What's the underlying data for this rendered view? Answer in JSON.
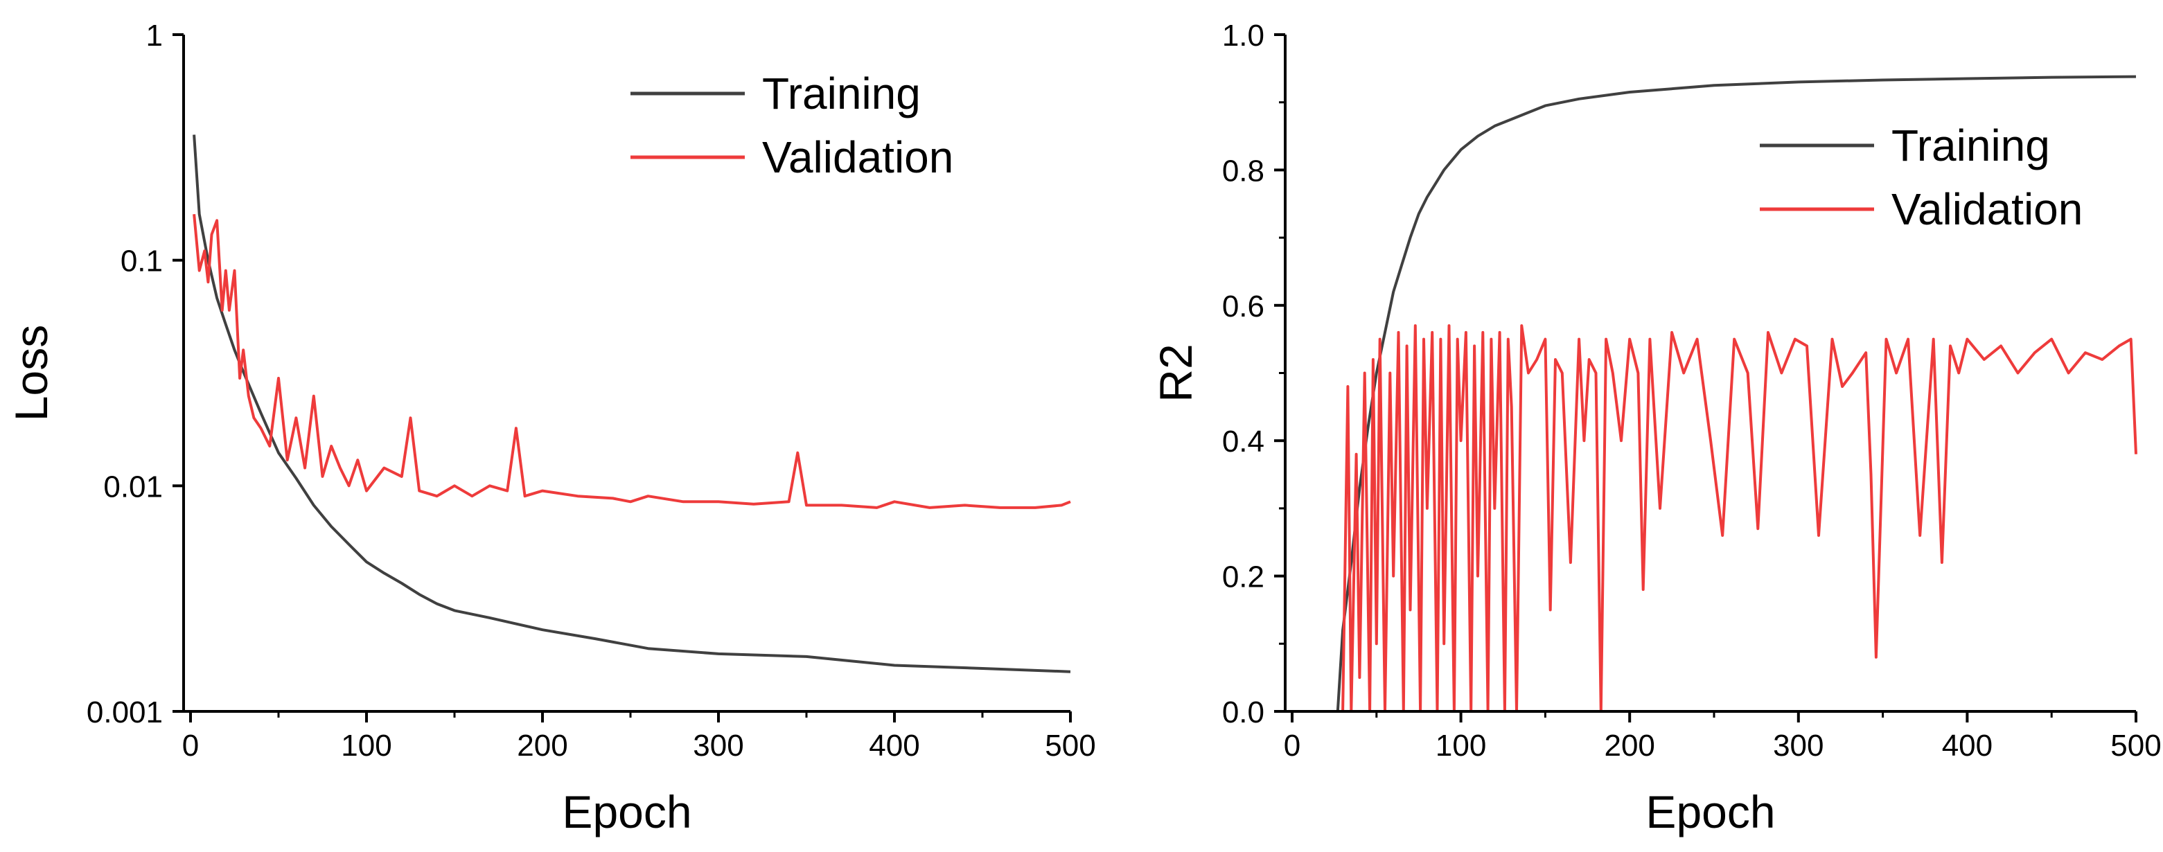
{
  "chart_data": [
    {
      "id": "loss",
      "type": "line",
      "title": "",
      "xlabel": "Epoch",
      "ylabel": "Loss",
      "yscale": "log",
      "xlim": [
        0,
        500
      ],
      "ylim": [
        0.001,
        1
      ],
      "xticks": [
        0,
        100,
        200,
        300,
        400,
        500
      ],
      "xtick_labels": [
        "0",
        "100",
        "200",
        "300",
        "400",
        "500"
      ],
      "yticks": [
        0.001,
        0.01,
        0.1,
        1
      ],
      "ytick_labels": [
        "0.001",
        "0.01",
        "0.1",
        "1"
      ],
      "legend_position": "top-right",
      "series": [
        {
          "name": "Training",
          "color": "#404040",
          "x": [
            2,
            5,
            10,
            15,
            20,
            25,
            30,
            40,
            50,
            60,
            70,
            80,
            90,
            100,
            110,
            120,
            130,
            140,
            150,
            170,
            200,
            230,
            260,
            300,
            350,
            400,
            450,
            500
          ],
          "y": [
            0.36,
            0.16,
            0.1,
            0.068,
            0.052,
            0.04,
            0.032,
            0.021,
            0.014,
            0.0108,
            0.0082,
            0.0066,
            0.0055,
            0.0046,
            0.0041,
            0.0037,
            0.0033,
            0.003,
            0.0028,
            0.0026,
            0.0023,
            0.0021,
            0.0019,
            0.0018,
            0.00175,
            0.0016,
            0.00155,
            0.0015
          ]
        },
        {
          "name": "Validation",
          "color": "#EE3B3B",
          "x": [
            2,
            5,
            8,
            10,
            12,
            15,
            18,
            20,
            22,
            25,
            28,
            30,
            33,
            36,
            40,
            45,
            50,
            55,
            60,
            65,
            70,
            75,
            80,
            85,
            90,
            95,
            100,
            110,
            120,
            125,
            130,
            140,
            150,
            160,
            170,
            180,
            185,
            190,
            200,
            220,
            240,
            250,
            260,
            280,
            300,
            320,
            340,
            345,
            350,
            370,
            390,
            400,
            420,
            440,
            460,
            480,
            495,
            500
          ],
          "y": [
            0.16,
            0.09,
            0.11,
            0.08,
            0.13,
            0.15,
            0.06,
            0.09,
            0.06,
            0.09,
            0.03,
            0.04,
            0.025,
            0.02,
            0.018,
            0.015,
            0.03,
            0.013,
            0.02,
            0.012,
            0.025,
            0.011,
            0.015,
            0.012,
            0.01,
            0.013,
            0.0095,
            0.012,
            0.011,
            0.02,
            0.0095,
            0.009,
            0.01,
            0.009,
            0.01,
            0.0095,
            0.018,
            0.009,
            0.0095,
            0.009,
            0.0088,
            0.0085,
            0.009,
            0.0085,
            0.0085,
            0.0083,
            0.0085,
            0.014,
            0.0082,
            0.0082,
            0.008,
            0.0085,
            0.008,
            0.0082,
            0.008,
            0.008,
            0.0082,
            0.0085
          ]
        }
      ]
    },
    {
      "id": "r2",
      "type": "line",
      "title": "",
      "xlabel": "Epoch",
      "ylabel": "R2",
      "yscale": "linear",
      "xlim": [
        0,
        500
      ],
      "ylim": [
        0.0,
        1.0
      ],
      "xticks": [
        0,
        100,
        200,
        300,
        400,
        500
      ],
      "xtick_labels": [
        "0",
        "100",
        "200",
        "300",
        "400",
        "500"
      ],
      "yticks": [
        0.0,
        0.2,
        0.4,
        0.6,
        0.8,
        1.0
      ],
      "ytick_labels": [
        "0.0",
        "0.2",
        "0.4",
        "0.6",
        "0.8",
        "1.0"
      ],
      "legend_position": "top-right",
      "series": [
        {
          "name": "Training",
          "color": "#404040",
          "x": [
            27,
            30,
            35,
            40,
            45,
            50,
            55,
            60,
            65,
            70,
            75,
            80,
            85,
            90,
            95,
            100,
            110,
            120,
            130,
            140,
            150,
            170,
            200,
            250,
            300,
            350,
            400,
            450,
            500
          ],
          "y": [
            0.0,
            0.12,
            0.22,
            0.33,
            0.42,
            0.5,
            0.56,
            0.62,
            0.66,
            0.7,
            0.735,
            0.76,
            0.78,
            0.8,
            0.815,
            0.83,
            0.85,
            0.865,
            0.875,
            0.885,
            0.895,
            0.905,
            0.915,
            0.925,
            0.93,
            0.933,
            0.935,
            0.937,
            0.938
          ]
        },
        {
          "name": "Validation",
          "color": "#EE3B3B",
          "x": [
            30,
            33,
            35,
            38,
            40,
            43,
            46,
            48,
            50,
            52,
            55,
            58,
            60,
            63,
            66,
            68,
            70,
            73,
            76,
            78,
            80,
            83,
            86,
            88,
            90,
            93,
            96,
            98,
            100,
            103,
            106,
            108,
            110,
            113,
            116,
            118,
            120,
            123,
            126,
            128,
            130,
            133,
            136,
            140,
            145,
            150,
            153,
            156,
            160,
            165,
            170,
            173,
            176,
            180,
            183,
            186,
            190,
            195,
            200,
            205,
            208,
            212,
            218,
            225,
            232,
            240,
            248,
            255,
            262,
            270,
            276,
            282,
            290,
            298,
            305,
            312,
            320,
            326,
            332,
            340,
            343,
            346,
            352,
            358,
            365,
            372,
            380,
            385,
            390,
            395,
            400,
            410,
            420,
            430,
            440,
            450,
            460,
            470,
            480,
            490,
            497,
            500
          ],
          "y": [
            0.0,
            0.48,
            0.0,
            0.38,
            0.05,
            0.5,
            0.0,
            0.52,
            0.1,
            0.55,
            0.0,
            0.5,
            0.2,
            0.56,
            0.0,
            0.54,
            0.15,
            0.57,
            0.0,
            0.55,
            0.3,
            0.56,
            0.0,
            0.55,
            0.1,
            0.57,
            0.0,
            0.55,
            0.4,
            0.56,
            0.0,
            0.54,
            0.2,
            0.56,
            0.0,
            0.55,
            0.3,
            0.56,
            0.0,
            0.55,
            0.45,
            0.0,
            0.57,
            0.5,
            0.52,
            0.55,
            0.15,
            0.52,
            0.5,
            0.22,
            0.55,
            0.4,
            0.52,
            0.5,
            0.0,
            0.55,
            0.5,
            0.4,
            0.55,
            0.5,
            0.18,
            0.55,
            0.3,
            0.56,
            0.5,
            0.55,
            0.4,
            0.26,
            0.55,
            0.5,
            0.27,
            0.56,
            0.5,
            0.55,
            0.54,
            0.26,
            0.55,
            0.48,
            0.5,
            0.53,
            0.35,
            0.08,
            0.55,
            0.5,
            0.55,
            0.26,
            0.55,
            0.22,
            0.54,
            0.5,
            0.55,
            0.52,
            0.54,
            0.5,
            0.53,
            0.55,
            0.5,
            0.53,
            0.52,
            0.54,
            0.55,
            0.38
          ]
        }
      ]
    }
  ]
}
